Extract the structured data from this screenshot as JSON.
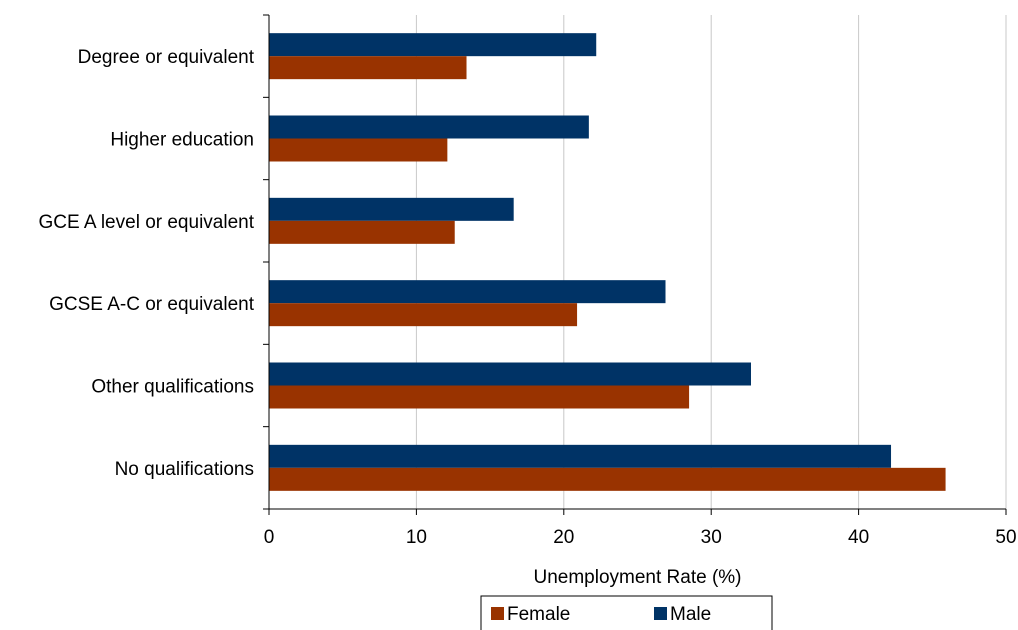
{
  "chart_data": {
    "type": "bar",
    "orientation": "horizontal",
    "categories": [
      "Degree or equivalent",
      "Higher education",
      "GCE A level or equivalent",
      "GCSE A-C or equivalent",
      "Other qualifications",
      "No qualifications"
    ],
    "series": [
      {
        "name": "Female",
        "color": "#993300",
        "values": [
          13.4,
          12.1,
          12.6,
          20.9,
          28.5,
          45.9
        ]
      },
      {
        "name": "Male",
        "color": "#003366",
        "values": [
          22.2,
          21.7,
          16.6,
          26.9,
          32.7,
          42.2
        ]
      }
    ],
    "xlabel": "Unemployment Rate (%)",
    "ylabel": "",
    "xlim": [
      0,
      50
    ],
    "xticks": [
      0,
      10,
      20,
      30,
      40,
      50
    ],
    "grid": true,
    "legend_position": "bottom"
  }
}
